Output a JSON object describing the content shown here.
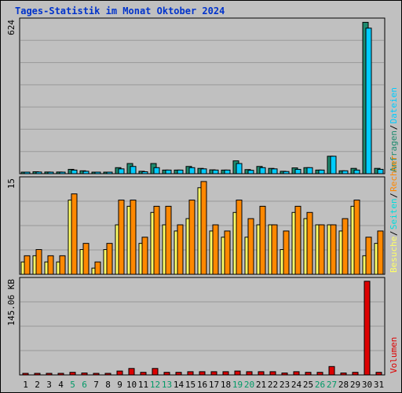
{
  "page": {
    "title": "Tages-Statistik im Monat Oktober 2024"
  },
  "colors": {
    "background": "#c0c0c0",
    "title": "#0033cc",
    "anfragen": "#1e8a6e",
    "dateien": "#00ccff",
    "besuche": "#ffff66",
    "seiten": "#00dddd",
    "rechner": "#ff8800",
    "volumen": "#dd0000",
    "weekend_day": "#009966",
    "grid": "#999999"
  },
  "chart_data": [
    {
      "type": "bar",
      "panel": "top",
      "ymax_label": "624",
      "ylim": [
        0,
        635
      ],
      "categories": [
        "1",
        "2",
        "3",
        "4",
        "5",
        "6",
        "7",
        "8",
        "9",
        "10",
        "11",
        "12",
        "13",
        "14",
        "15",
        "16",
        "17",
        "18",
        "19",
        "20",
        "21",
        "22",
        "23",
        "24",
        "25",
        "26",
        "27",
        "28",
        "29",
        "30",
        "31"
      ],
      "side_labels": [
        "Anfragen",
        "Dateien"
      ],
      "series": [
        {
          "name": "Anfragen",
          "values": [
            3,
            8,
            7,
            7,
            18,
            12,
            6,
            6,
            25,
            42,
            10,
            42,
            15,
            15,
            30,
            22,
            16,
            15,
            53,
            17,
            30,
            22,
            10,
            24,
            25,
            15,
            72,
            12,
            22,
            624,
            22
          ]
        },
        {
          "name": "Dateien",
          "values": [
            3,
            7,
            6,
            5,
            15,
            10,
            5,
            6,
            20,
            30,
            8,
            25,
            15,
            15,
            25,
            20,
            15,
            15,
            42,
            14,
            25,
            20,
            9,
            18,
            25,
            15,
            72,
            12,
            15,
            600,
            18
          ]
        }
      ]
    },
    {
      "type": "bar",
      "panel": "middle",
      "ymax_label": "15",
      "ylim": [
        0,
        15.5
      ],
      "categories": [
        "1",
        "2",
        "3",
        "4",
        "5",
        "6",
        "7",
        "8",
        "9",
        "10",
        "11",
        "12",
        "13",
        "14",
        "15",
        "16",
        "17",
        "18",
        "19",
        "20",
        "21",
        "22",
        "23",
        "24",
        "25",
        "26",
        "27",
        "28",
        "29",
        "30",
        "31"
      ],
      "side_labels": [
        "Besuche",
        "Seiten",
        "Rechner"
      ],
      "series": [
        {
          "name": "Besuche",
          "values": [
            2,
            3,
            2,
            2,
            12,
            4,
            1,
            4,
            8,
            11,
            5,
            10,
            8,
            7,
            9,
            14,
            7,
            6,
            10,
            6,
            8,
            8,
            4,
            10,
            9,
            8,
            8,
            7,
            11,
            3,
            5
          ]
        },
        {
          "name": "Rechner",
          "values": [
            3,
            4,
            3,
            3,
            13,
            5,
            2,
            5,
            12,
            12,
            6,
            11,
            11,
            8,
            12,
            15,
            8,
            7,
            12,
            9,
            11,
            8,
            7,
            11,
            10,
            8,
            8,
            9,
            12,
            6,
            7
          ]
        }
      ]
    },
    {
      "type": "bar",
      "panel": "bottom",
      "ymax_label": "145.06 KB",
      "ylim": [
        0,
        148.5
      ],
      "categories": [
        "1",
        "2",
        "3",
        "4",
        "5",
        "6",
        "7",
        "8",
        "9",
        "10",
        "11",
        "12",
        "13",
        "14",
        "15",
        "16",
        "17",
        "18",
        "19",
        "20",
        "21",
        "22",
        "23",
        "24",
        "25",
        "26",
        "27",
        "28",
        "29",
        "30",
        "31"
      ],
      "side_labels": [
        "Volumen"
      ],
      "series": [
        {
          "name": "Volumen",
          "values": [
            2,
            2,
            2,
            2,
            4,
            3,
            2,
            2,
            6,
            10,
            4,
            10,
            4,
            4,
            5,
            5,
            5,
            5,
            6,
            5,
            5,
            5,
            3,
            5,
            4,
            4,
            13,
            3,
            4,
            145.06,
            4
          ]
        }
      ]
    }
  ],
  "weekend_days": [
    "5",
    "6",
    "12",
    "13",
    "19",
    "20",
    "26",
    "27"
  ]
}
